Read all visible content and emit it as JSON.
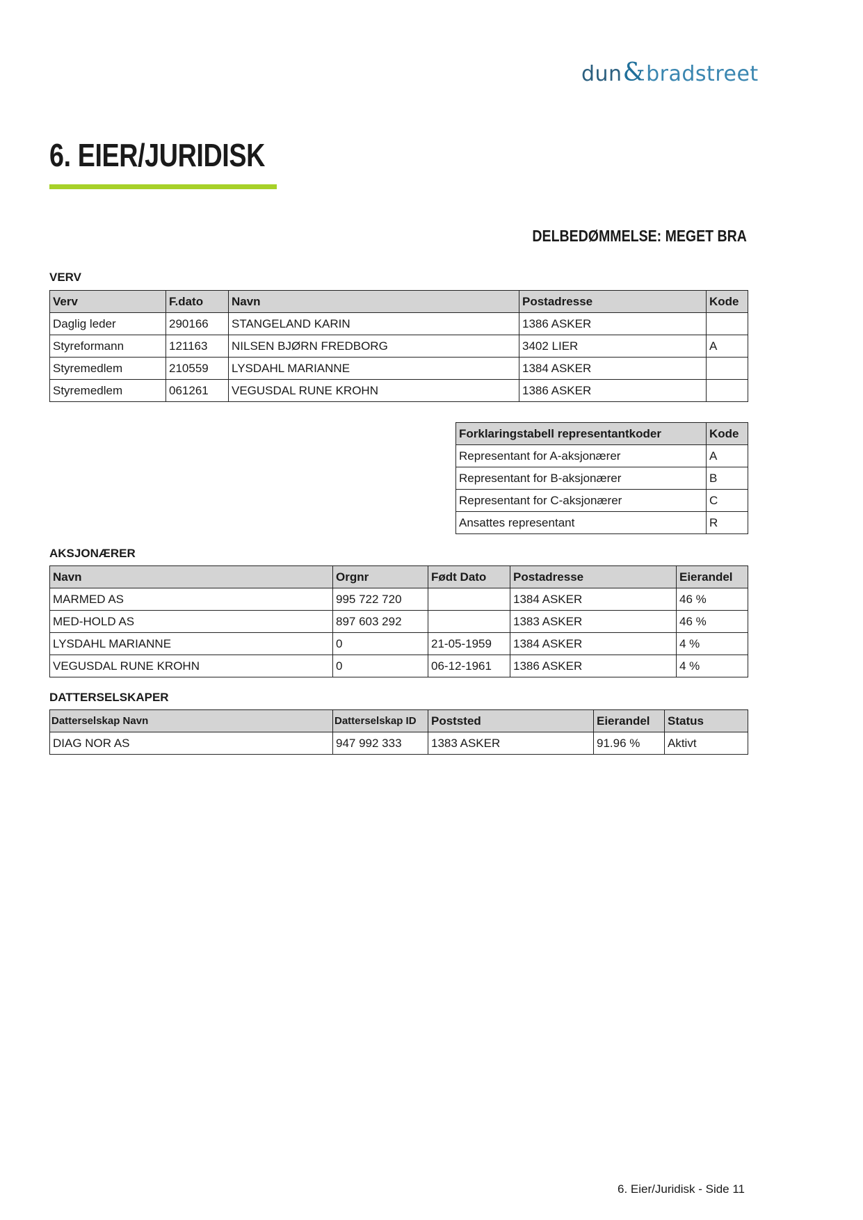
{
  "logo": {
    "part1": "dun",
    "amp": "&",
    "part2": "bradstreet"
  },
  "title": "6. EIER/JURIDISK",
  "rating": "DELBEDØMMELSE: MEGET BRA",
  "accent_color": "#a7d129",
  "verv": {
    "label": "VERV",
    "headers": [
      "Verv",
      "F.dato",
      "Navn",
      "Postadresse",
      "Kode"
    ],
    "rows": [
      [
        "Daglig leder",
        "290166",
        "STANGELAND KARIN",
        "1386 ASKER",
        ""
      ],
      [
        "Styreformann",
        "121163",
        "NILSEN BJØRN FREDBORG",
        "3402 LIER",
        "A"
      ],
      [
        "Styremedlem",
        "210559",
        "LYSDAHL MARIANNE",
        "1384 ASKER",
        ""
      ],
      [
        "Styremedlem",
        "061261",
        "VEGUSDAL RUNE KROHN",
        "1386 ASKER",
        ""
      ]
    ]
  },
  "forklaring": {
    "headers": [
      "Forklaringstabell representantkoder",
      "Kode"
    ],
    "rows": [
      [
        "Representant for A-aksjonærer",
        "A"
      ],
      [
        "Representant for B-aksjonærer",
        "B"
      ],
      [
        "Representant for C-aksjonærer",
        "C"
      ],
      [
        "Ansattes representant",
        "R"
      ]
    ]
  },
  "aksjonaerer": {
    "label": "AKSJONÆRER",
    "headers": [
      "Navn",
      "Orgnr",
      "Født Dato",
      "Postadresse",
      "Eierandel"
    ],
    "rows": [
      [
        "MARMED AS",
        "995 722 720",
        "",
        "1384 ASKER",
        "46 %"
      ],
      [
        "MED-HOLD AS",
        "897 603 292",
        "",
        "1383 ASKER",
        "46 %"
      ],
      [
        "LYSDAHL MARIANNE",
        "0",
        "21-05-1959",
        "1384 ASKER",
        "4 %"
      ],
      [
        "VEGUSDAL RUNE KROHN",
        "0",
        "06-12-1961",
        "1386 ASKER",
        "4 %"
      ]
    ]
  },
  "datterselskaper": {
    "label": "DATTERSELSKAPER",
    "headers": [
      "Datterselskap Navn",
      "Datterselskap ID",
      "Poststed",
      "Eierandel",
      "Status"
    ],
    "rows": [
      [
        "DIAG NOR AS",
        "947 992 333",
        "1383 ASKER",
        "91.96 %",
        "Aktivt"
      ]
    ]
  },
  "footer": "6. Eier/Juridisk - Side 11"
}
